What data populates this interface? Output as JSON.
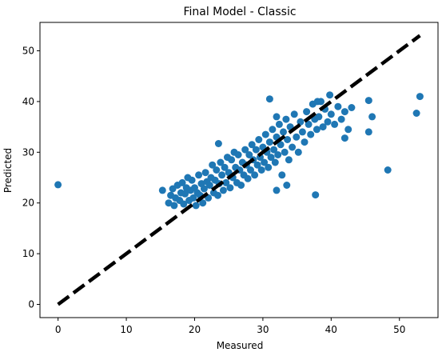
{
  "chart_data": {
    "type": "scatter",
    "title": "Final Model - Classic",
    "xlabel": "Measured",
    "ylabel": "Predicted",
    "xlim": [
      -2.65,
      55.65
    ],
    "ylim": [
      -2.6,
      55.6
    ],
    "xticks": [
      0,
      10,
      20,
      30,
      40,
      50
    ],
    "yticks": [
      0,
      10,
      20,
      30,
      40,
      50
    ],
    "grid": false,
    "point_color": "#1f77b4",
    "reference_line": {
      "x": [
        0,
        53
      ],
      "y": [
        0,
        53
      ],
      "style": "dashed",
      "color": "#000000"
    },
    "points": [
      [
        0.0,
        23.6
      ],
      [
        15.3,
        22.5
      ],
      [
        16.2,
        20.0
      ],
      [
        16.5,
        21.5
      ],
      [
        16.8,
        22.8
      ],
      [
        17.0,
        19.5
      ],
      [
        17.2,
        21.0
      ],
      [
        17.5,
        23.5
      ],
      [
        17.8,
        20.5
      ],
      [
        18.0,
        22.0
      ],
      [
        18.2,
        24.0
      ],
      [
        18.4,
        19.8
      ],
      [
        18.6,
        21.8
      ],
      [
        18.8,
        23.0
      ],
      [
        19.0,
        25.0
      ],
      [
        19.2,
        20.5
      ],
      [
        19.4,
        22.5
      ],
      [
        19.6,
        24.5
      ],
      [
        19.8,
        21.0
      ],
      [
        20.0,
        23.0
      ],
      [
        20.2,
        19.5
      ],
      [
        20.4,
        22.0
      ],
      [
        20.6,
        25.5
      ],
      [
        20.8,
        21.5
      ],
      [
        21.0,
        23.8
      ],
      [
        21.2,
        20.0
      ],
      [
        21.4,
        22.8
      ],
      [
        21.6,
        26.0
      ],
      [
        21.8,
        24.2
      ],
      [
        22.0,
        21.0
      ],
      [
        22.2,
        23.5
      ],
      [
        22.4,
        25.0
      ],
      [
        22.6,
        27.5
      ],
      [
        22.8,
        22.0
      ],
      [
        23.0,
        24.5
      ],
      [
        23.2,
        26.5
      ],
      [
        23.4,
        21.5
      ],
      [
        23.6,
        23.8
      ],
      [
        23.8,
        28.0
      ],
      [
        24.0,
        25.5
      ],
      [
        24.2,
        22.5
      ],
      [
        24.4,
        27.0
      ],
      [
        24.6,
        24.0
      ],
      [
        24.8,
        29.0
      ],
      [
        25.0,
        26.0
      ],
      [
        25.2,
        23.0
      ],
      [
        25.4,
        28.5
      ],
      [
        25.6,
        25.0
      ],
      [
        25.8,
        30.0
      ],
      [
        26.0,
        27.0
      ],
      [
        26.2,
        24.0
      ],
      [
        26.4,
        29.5
      ],
      [
        26.6,
        26.5
      ],
      [
        26.8,
        23.5
      ],
      [
        27.0,
        28.0
      ],
      [
        27.2,
        25.5
      ],
      [
        27.4,
        30.5
      ],
      [
        27.6,
        27.5
      ],
      [
        27.8,
        24.8
      ],
      [
        28.0,
        29.5
      ],
      [
        28.2,
        26.5
      ],
      [
        28.4,
        31.5
      ],
      [
        28.6,
        28.5
      ],
      [
        28.8,
        25.5
      ],
      [
        29.0,
        30.5
      ],
      [
        29.2,
        27.5
      ],
      [
        29.4,
        32.5
      ],
      [
        29.6,
        29.0
      ],
      [
        29.8,
        26.5
      ],
      [
        30.0,
        31.0
      ],
      [
        30.2,
        28.0
      ],
      [
        30.4,
        33.5
      ],
      [
        30.6,
        30.0
      ],
      [
        30.8,
        27.0
      ],
      [
        31.0,
        32.0
      ],
      [
        31.2,
        29.0
      ],
      [
        31.4,
        34.5
      ],
      [
        31.6,
        30.5
      ],
      [
        31.8,
        28.0
      ],
      [
        32.0,
        33.0
      ],
      [
        32.2,
        29.5
      ],
      [
        32.4,
        35.5
      ],
      [
        32.6,
        31.5
      ],
      [
        32.8,
        25.5
      ],
      [
        33.0,
        34.0
      ],
      [
        33.2,
        30.0
      ],
      [
        33.4,
        36.5
      ],
      [
        33.6,
        32.5
      ],
      [
        33.8,
        28.5
      ],
      [
        34.0,
        35.0
      ],
      [
        34.3,
        31.0
      ],
      [
        34.6,
        37.5
      ],
      [
        34.9,
        33.0
      ],
      [
        35.2,
        30.0
      ],
      [
        35.5,
        36.0
      ],
      [
        35.8,
        34.0
      ],
      [
        36.1,
        32.0
      ],
      [
        36.4,
        38.0
      ],
      [
        36.7,
        35.5
      ],
      [
        37.0,
        33.5
      ],
      [
        37.3,
        39.5
      ],
      [
        37.6,
        36.5
      ],
      [
        37.9,
        34.5
      ],
      [
        38.2,
        37.0
      ],
      [
        38.5,
        40.0
      ],
      [
        38.8,
        35.0
      ],
      [
        39.1,
        38.5
      ],
      [
        39.5,
        36.0
      ],
      [
        40.0,
        37.5
      ],
      [
        40.5,
        35.5
      ],
      [
        41.0,
        39.0
      ],
      [
        41.5,
        36.5
      ],
      [
        42.0,
        38.0
      ],
      [
        42.5,
        34.5
      ],
      [
        23.5,
        31.7
      ],
      [
        31.0,
        40.5
      ],
      [
        32.0,
        37.0
      ],
      [
        32.0,
        22.5
      ],
      [
        33.5,
        23.5
      ],
      [
        37.7,
        21.6
      ],
      [
        38.0,
        40.0
      ],
      [
        39.8,
        41.3
      ],
      [
        42.0,
        32.8
      ],
      [
        43.0,
        38.8
      ],
      [
        45.5,
        40.2
      ],
      [
        45.5,
        34.0
      ],
      [
        46.0,
        37.0
      ],
      [
        48.3,
        26.5
      ],
      [
        52.5,
        37.7
      ],
      [
        53.0,
        41.0
      ]
    ]
  }
}
